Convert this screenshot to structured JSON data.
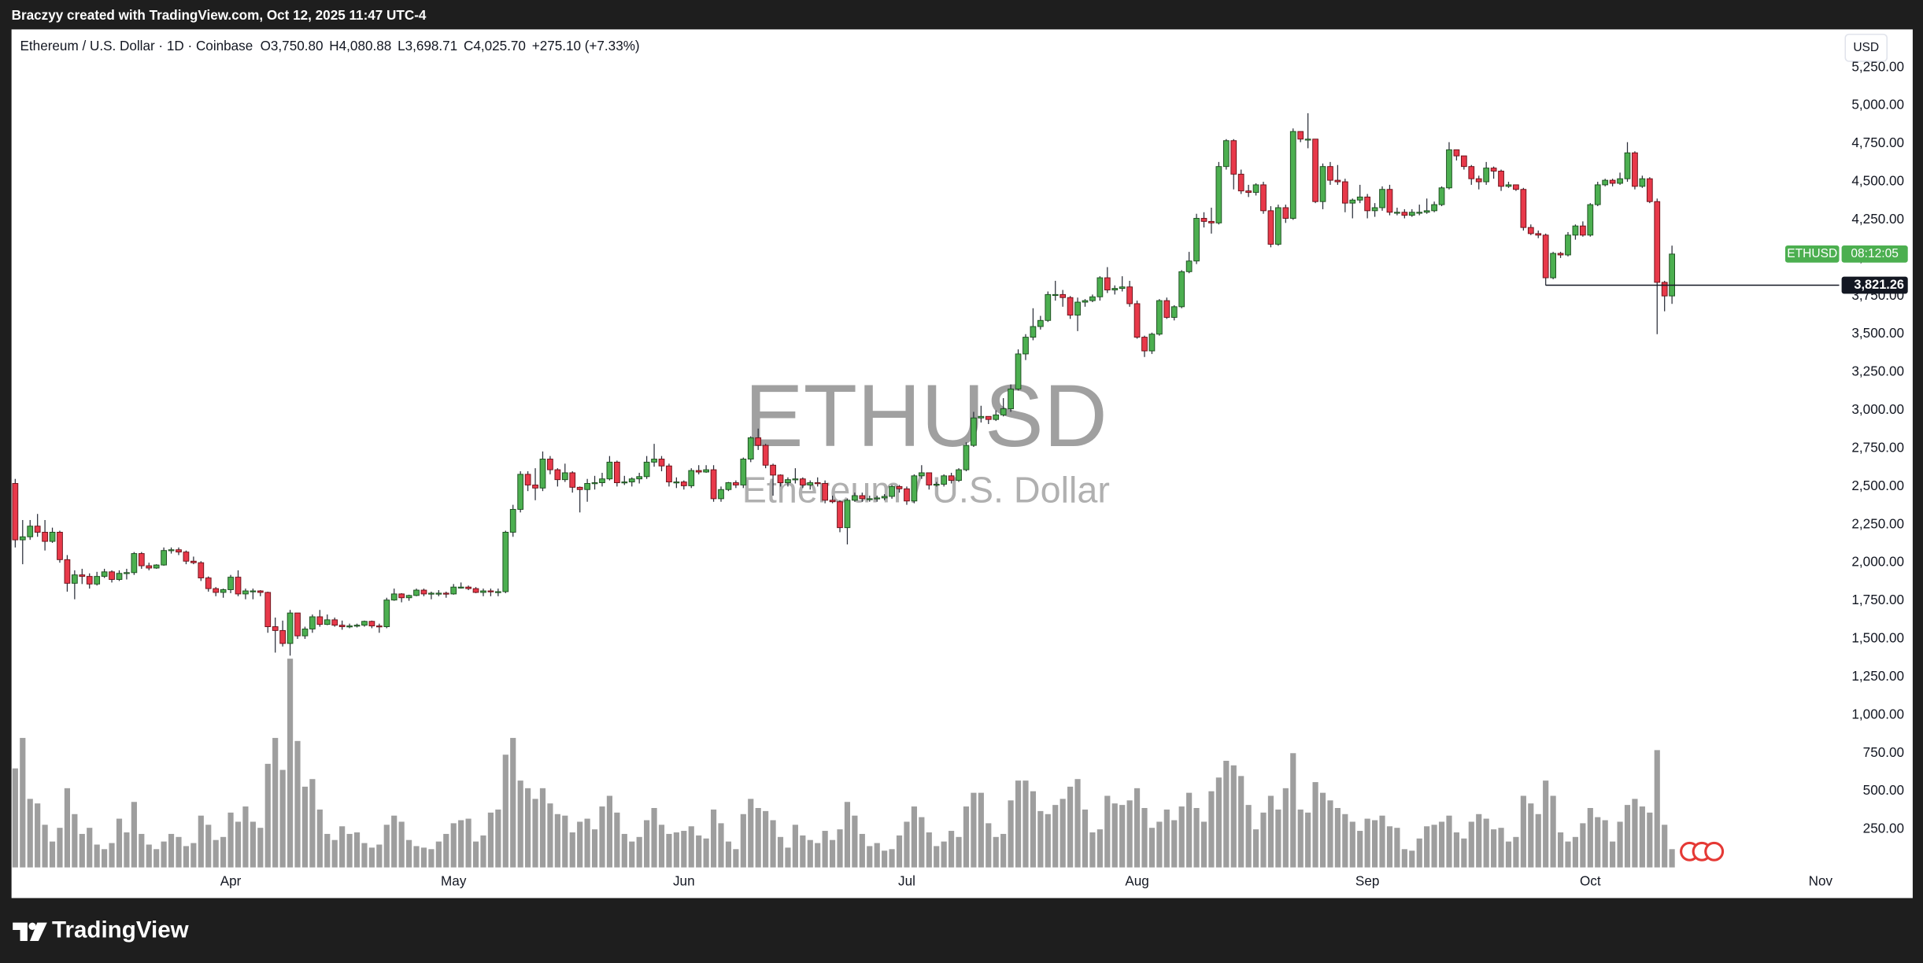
{
  "top_bar": {
    "text": "Braczyy created with TradingView.com, Oct 12, 2025 11:47 UTC-4"
  },
  "chart_data": {
    "type": "candlestick",
    "title": "Ethereum / U.S. Dollar · 1D · Coinbase",
    "legend": [
      {
        "key": "O",
        "value": 3750.8,
        "label": "3,750.80"
      },
      {
        "key": "H",
        "value": 4080.88,
        "label": "4,080.88"
      },
      {
        "key": "L",
        "value": 3698.71,
        "label": "3,698.71"
      },
      {
        "key": "C",
        "value": 4025.7,
        "label": "4,025.70"
      }
    ],
    "change": {
      "value": 275.1,
      "label": "+275.10"
    },
    "change_pct": {
      "value": 7.33,
      "label": "(+7.33%)"
    },
    "currency": "USD",
    "watermark": "ETHUSD",
    "watermark_subtitle": "Ethereum / U.S. Dollar",
    "open": [
      2520,
      2150,
      2170,
      2240,
      2200,
      2140,
      2200,
      2020,
      1865,
      1920,
      1910,
      1860,
      1910,
      1940,
      1890,
      1930,
      1935,
      2060,
      1980,
      1965,
      1985,
      2080,
      2085,
      2070,
      2010,
      2000,
      1900,
      1830,
      1805,
      1823,
      1905,
      1795,
      1815,
      1815,
      1805,
      1580,
      1555,
      1470,
      1670,
      1520,
      1565,
      1645,
      1595,
      1625,
      1590,
      1580,
      1585,
      1590,
      1615,
      1585,
      1580,
      1755,
      1795,
      1770,
      1785,
      1820,
      1795,
      1800,
      1800,
      1795,
      1840,
      1840,
      1830,
      1805,
      1815,
      1810,
      1810,
      2200,
      2350,
      2580,
      2510,
      2490,
      2680,
      2610,
      2545,
      2590,
      2495,
      2480,
      2520,
      2525,
      2550,
      2660,
      2525,
      2530,
      2550,
      2565,
      2660,
      2680,
      2635,
      2530,
      2530,
      2505,
      2605,
      2595,
      2610,
      2420,
      2480,
      2525,
      2510,
      2680,
      2820,
      2770,
      2640,
      2575,
      2525,
      2545,
      2550,
      2510,
      2525,
      2520,
      2410,
      2400,
      2230,
      2410,
      2440,
      2420,
      2420,
      2425,
      2435,
      2500,
      2485,
      2405,
      2570,
      2590,
      2510,
      2515,
      2570,
      2540,
      2610,
      2770,
      2950,
      2960,
      2940,
      2970,
      3010,
      3140,
      3370,
      3480,
      3550,
      3590,
      3760,
      3760,
      3740,
      3625,
      3710,
      3720,
      3745,
      3870,
      3790,
      3800,
      3810,
      3700,
      3480,
      3390,
      3500,
      3720,
      3610,
      3680,
      3910,
      3980,
      4260,
      4240,
      4230,
      4600,
      4770,
      4550,
      4440,
      4430,
      4480,
      4310,
      4090,
      4330,
      4260,
      4830,
      4780,
      4780,
      4370,
      4600,
      4510,
      4500,
      4360,
      4380,
      4400,
      4310,
      4330,
      4450,
      4300,
      4300,
      4280,
      4300,
      4300,
      4310,
      4350,
      4460,
      4710,
      4670,
      4600,
      4520,
      4500,
      4590,
      4570,
      4470,
      4480,
      4450,
      4200,
      4160,
      4150,
      3870,
      4030,
      4020,
      4150,
      4210,
      4150,
      4350,
      4480,
      4510,
      4490,
      4520,
      4690,
      4470,
      4520,
      4370,
      3840,
      3750.8
    ],
    "high": [
      2550,
      2280,
      2280,
      2320,
      2280,
      2230,
      2210,
      2050,
      1950,
      1960,
      1930,
      1940,
      1960,
      1950,
      1950,
      1960,
      2070,
      2070,
      2000,
      1990,
      2100,
      2100,
      2100,
      2080,
      2040,
      2010,
      1910,
      1840,
      1830,
      1920,
      1950,
      1830,
      1830,
      1820,
      1810,
      1640,
      1620,
      1690,
      1670,
      1580,
      1660,
      1690,
      1660,
      1640,
      1620,
      1600,
      1600,
      1620,
      1620,
      1600,
      1770,
      1830,
      1800,
      1790,
      1830,
      1830,
      1810,
      1820,
      1810,
      1860,
      1870,
      1850,
      1840,
      1830,
      1830,
      1830,
      2210,
      2380,
      2600,
      2600,
      2620,
      2730,
      2700,
      2620,
      2650,
      2600,
      2500,
      2550,
      2570,
      2590,
      2700,
      2670,
      2570,
      2560,
      2590,
      2700,
      2780,
      2700,
      2650,
      2560,
      2540,
      2620,
      2640,
      2640,
      2640,
      2500,
      2530,
      2540,
      2690,
      2830,
      2880,
      2780,
      2650,
      2580,
      2560,
      2620,
      2560,
      2540,
      2560,
      2540,
      2440,
      2410,
      2420,
      2460,
      2460,
      2440,
      2440,
      2450,
      2510,
      2510,
      2500,
      2580,
      2640,
      2590,
      2530,
      2580,
      2590,
      2620,
      2790,
      2990,
      3030,
      2960,
      3000,
      3080,
      3170,
      3400,
      3500,
      3670,
      3620,
      3780,
      3850,
      3790,
      3750,
      3740,
      3730,
      3760,
      3880,
      3940,
      3820,
      3880,
      3850,
      3720,
      3490,
      3510,
      3730,
      3740,
      3690,
      3920,
      4040,
      4290,
      4300,
      4330,
      4630,
      4780,
      4780,
      4580,
      4480,
      4490,
      4500,
      4340,
      4350,
      4350,
      4850,
      4830,
      4950,
      4780,
      4620,
      4630,
      4610,
      4520,
      4390,
      4480,
      4420,
      4360,
      4470,
      4480,
      4330,
      4320,
      4320,
      4350,
      4390,
      4370,
      4470,
      4760,
      4700,
      4670,
      4610,
      4540,
      4630,
      4600,
      4580,
      4500,
      4480,
      4460,
      4220,
      4180,
      4160,
      4040,
      4040,
      4170,
      4220,
      4240,
      4360,
      4500,
      4520,
      4520,
      4560,
      4760,
      4700,
      4540,
      4530,
      4390,
      3850,
      4080.88
    ],
    "low": [
      2100,
      1990,
      2150,
      2170,
      2080,
      2130,
      2000,
      1810,
      1760,
      1860,
      1830,
      1850,
      1900,
      1870,
      1880,
      1890,
      1920,
      1960,
      1950,
      1960,
      1980,
      2060,
      2050,
      1990,
      1990,
      1880,
      1810,
      1780,
      1770,
      1800,
      1780,
      1760,
      1760,
      1780,
      1540,
      1410,
      1450,
      1390,
      1500,
      1500,
      1540,
      1580,
      1590,
      1580,
      1560,
      1570,
      1575,
      1580,
      1570,
      1540,
      1570,
      1750,
      1740,
      1750,
      1780,
      1780,
      1760,
      1780,
      1770,
      1790,
      1830,
      1820,
      1800,
      1780,
      1780,
      1780,
      1800,
      2170,
      2330,
      2470,
      2410,
      2470,
      2580,
      2500,
      2530,
      2460,
      2330,
      2400,
      2480,
      2500,
      2540,
      2500,
      2510,
      2500,
      2520,
      2550,
      2630,
      2600,
      2500,
      2490,
      2480,
      2490,
      2580,
      2590,
      2400,
      2400,
      2470,
      2490,
      2490,
      2660,
      2740,
      2620,
      2440,
      2500,
      2500,
      2520,
      2490,
      2480,
      2500,
      2390,
      2390,
      2200,
      2120,
      2400,
      2400,
      2400,
      2400,
      2410,
      2420,
      2460,
      2380,
      2390,
      2550,
      2480,
      2500,
      2500,
      2520,
      2530,
      2600,
      2760,
      2920,
      2910,
      2930,
      2960,
      2990,
      3130,
      3330,
      3460,
      3530,
      3580,
      3720,
      3680,
      3600,
      3520,
      3680,
      3710,
      3720,
      3770,
      3760,
      3780,
      3680,
      3470,
      3350,
      3370,
      3490,
      3600,
      3590,
      3670,
      3900,
      3960,
      4200,
      4160,
      4220,
      4580,
      4450,
      4420,
      4400,
      4410,
      4290,
      4070,
      4080,
      4230,
      4250,
      4760,
      4720,
      4360,
      4320,
      4480,
      4480,
      4300,
      4260,
      4360,
      4260,
      4270,
      4310,
      4280,
      4280,
      4260,
      4270,
      4280,
      4290,
      4300,
      4340,
      4450,
      4640,
      4580,
      4480,
      4450,
      4480,
      4520,
      4440,
      4460,
      4440,
      4180,
      4150,
      4130,
      3820,
      3860,
      4000,
      4010,
      4120,
      4140,
      4140,
      4340,
      4470,
      4470,
      4480,
      4500,
      4450,
      4460,
      4360,
      3500,
      3650,
      3698.71
    ],
    "close": [
      2150,
      2170,
      2240,
      2200,
      2140,
      2200,
      2020,
      1865,
      1920,
      1910,
      1860,
      1910,
      1940,
      1890,
      1930,
      1935,
      2060,
      1980,
      1965,
      1985,
      2080,
      2085,
      2070,
      2010,
      2000,
      1900,
      1830,
      1805,
      1823,
      1905,
      1795,
      1815,
      1815,
      1805,
      1580,
      1555,
      1470,
      1670,
      1520,
      1565,
      1645,
      1595,
      1625,
      1590,
      1580,
      1585,
      1590,
      1615,
      1585,
      1580,
      1755,
      1795,
      1770,
      1785,
      1820,
      1795,
      1800,
      1800,
      1795,
      1840,
      1840,
      1830,
      1805,
      1815,
      1810,
      1810,
      2200,
      2350,
      2580,
      2510,
      2490,
      2680,
      2610,
      2545,
      2590,
      2495,
      2480,
      2520,
      2525,
      2550,
      2660,
      2525,
      2530,
      2550,
      2565,
      2660,
      2680,
      2635,
      2530,
      2530,
      2505,
      2605,
      2595,
      2610,
      2420,
      2480,
      2525,
      2510,
      2680,
      2820,
      2770,
      2640,
      2575,
      2525,
      2545,
      2550,
      2510,
      2525,
      2520,
      2410,
      2400,
      2230,
      2410,
      2440,
      2420,
      2420,
      2425,
      2435,
      2500,
      2485,
      2405,
      2570,
      2590,
      2510,
      2515,
      2570,
      2540,
      2610,
      2770,
      2950,
      2960,
      2940,
      2970,
      3010,
      3140,
      3370,
      3480,
      3550,
      3590,
      3760,
      3760,
      3740,
      3625,
      3710,
      3720,
      3745,
      3870,
      3790,
      3800,
      3810,
      3700,
      3480,
      3390,
      3500,
      3720,
      3610,
      3680,
      3910,
      3980,
      4260,
      4240,
      4230,
      4600,
      4770,
      4550,
      4440,
      4430,
      4480,
      4310,
      4090,
      4330,
      4260,
      4830,
      4780,
      4780,
      4370,
      4600,
      4510,
      4500,
      4360,
      4380,
      4400,
      4310,
      4330,
      4450,
      4300,
      4300,
      4280,
      4300,
      4300,
      4310,
      4350,
      4460,
      4710,
      4670,
      4600,
      4520,
      4500,
      4590,
      4570,
      4470,
      4480,
      4450,
      4200,
      4160,
      4150,
      3870,
      4030,
      4020,
      4150,
      4210,
      4150,
      4350,
      4480,
      4510,
      4490,
      4520,
      4690,
      4470,
      4520,
      4370,
      3840,
      3750.8,
      4025.7
    ],
    "volume": [
      650,
      850,
      450,
      420,
      280,
      170,
      260,
      520,
      350,
      220,
      260,
      150,
      120,
      160,
      320,
      230,
      430,
      220,
      150,
      120,
      170,
      220,
      200,
      140,
      160,
      340,
      280,
      180,
      200,
      360,
      300,
      400,
      300,
      260,
      680,
      850,
      640,
      1370,
      830,
      530,
      580,
      380,
      220,
      180,
      270,
      220,
      230,
      160,
      130,
      150,
      280,
      340,
      300,
      180,
      140,
      130,
      120,
      170,
      220,
      290,
      310,
      320,
      170,
      210,
      360,
      380,
      740,
      850,
      570,
      520,
      450,
      520,
      420,
      350,
      340,
      230,
      300,
      320,
      250,
      400,
      470,
      360,
      220,
      170,
      200,
      310,
      390,
      280,
      220,
      230,
      240,
      270,
      210,
      190,
      380,
      290,
      170,
      120,
      350,
      450,
      390,
      370,
      310,
      200,
      130,
      280,
      210,
      180,
      160,
      240,
      180,
      250,
      430,
      340,
      220,
      140,
      160,
      110,
      120,
      210,
      300,
      400,
      330,
      230,
      140,
      170,
      240,
      200,
      400,
      490,
      490,
      290,
      200,
      220,
      440,
      570,
      570,
      500,
      370,
      350,
      410,
      450,
      530,
      580,
      380,
      230,
      250,
      470,
      420,
      410,
      440,
      520,
      390,
      260,
      300,
      380,
      310,
      400,
      490,
      390,
      300,
      500,
      590,
      700,
      670,
      600,
      410,
      250,
      360,
      470,
      380,
      520,
      750,
      380,
      360,
      560,
      490,
      440,
      390,
      350,
      300,
      240,
      320,
      310,
      340,
      270,
      260,
      120,
      110,
      190,
      270,
      280,
      300,
      340,
      230,
      190,
      300,
      350,
      320,
      250,
      260,
      170,
      200,
      470,
      420,
      350,
      570,
      470,
      230,
      170,
      200,
      290,
      390,
      330,
      310,
      170,
      300,
      410,
      450,
      400,
      360,
      770,
      280,
      120
    ],
    "xlim": [
      -0.5,
      245.5
    ],
    "xticks": [
      {
        "value": 29,
        "label": "Apr"
      },
      {
        "value": 59,
        "label": "May"
      },
      {
        "value": 90,
        "label": "Jun"
      },
      {
        "value": 120,
        "label": "Jul"
      },
      {
        "value": 151,
        "label": "Aug"
      },
      {
        "value": 182,
        "label": "Sep"
      },
      {
        "value": 212,
        "label": "Oct"
      },
      {
        "value": 243,
        "label": "Nov"
      }
    ],
    "ylim": [
      0,
      5500
    ],
    "yticks": [
      {
        "value": 1000,
        "label": "1,000.00"
      },
      {
        "value": 1250,
        "label": "1,250.00"
      },
      {
        "value": 1500,
        "label": "1,500.00"
      },
      {
        "value": 1750,
        "label": "1,750.00"
      },
      {
        "value": 2000,
        "label": "2,000.00"
      },
      {
        "value": 2250,
        "label": "2,250.00"
      },
      {
        "value": 2500,
        "label": "2,500.00"
      },
      {
        "value": 2750,
        "label": "2,750.00"
      },
      {
        "value": 3000,
        "label": "3,000.00"
      },
      {
        "value": 3250,
        "label": "3,250.00"
      },
      {
        "value": 3500,
        "label": "3,500.00"
      },
      {
        "value": 3750,
        "label": "3,750.00"
      },
      {
        "value": 4000,
        "label": "4,000.00"
      },
      {
        "value": 4250,
        "label": "4,250.00"
      },
      {
        "value": 4500,
        "label": "4,500.00"
      },
      {
        "value": 4750,
        "label": "4,750.00"
      },
      {
        "value": 5000,
        "label": "5,000.00"
      },
      {
        "value": 5250,
        "label": "5,250.00"
      }
    ],
    "volume_yticks": [
      {
        "value": 250,
        "label": "250.00"
      },
      {
        "value": 500,
        "label": "500.00"
      },
      {
        "value": 750,
        "label": "750.00"
      }
    ],
    "price_line": {
      "symbol": "ETHUSD",
      "countdown": "08:12:05"
    },
    "hline": {
      "value": 3821.26,
      "label": "3,821.26",
      "from": 206
    },
    "up_color": "#4caf50",
    "down_color": "#e8394a",
    "volume_color": "#9e9e9e"
  },
  "footer": {
    "brand": "TradingView"
  }
}
